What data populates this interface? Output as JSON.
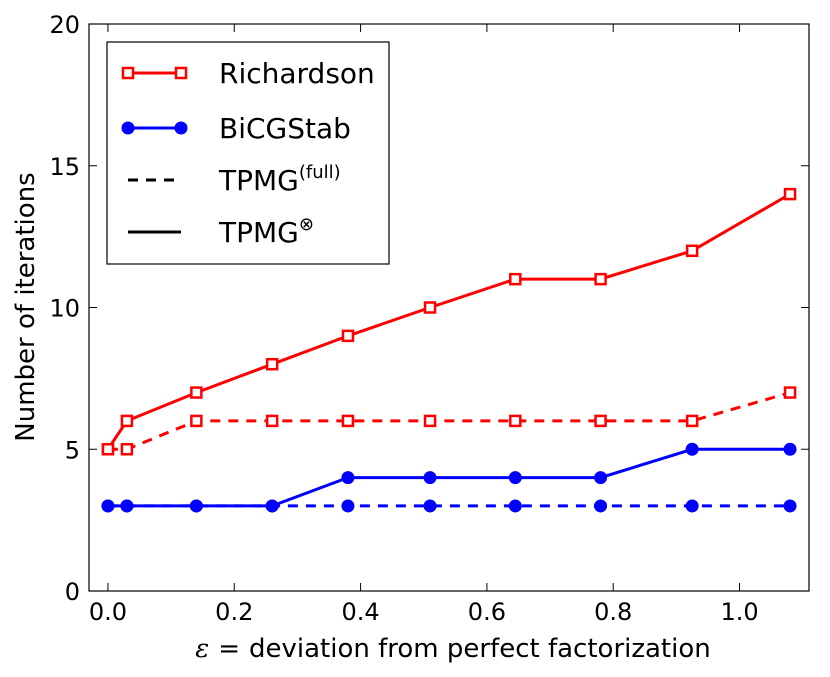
{
  "chart_data": {
    "type": "line",
    "xlabel": "deviation from perfect factorization",
    "xlabel_symbol": "ε",
    "xlabel_eq": "=",
    "ylabel": "Number of iterations",
    "xlim": [
      -0.03,
      1.11
    ],
    "ylim": [
      0,
      20
    ],
    "xticks": [
      "0.0",
      "0.2",
      "0.4",
      "0.6",
      "0.8",
      "1.0"
    ],
    "yticks": [
      "0",
      "5",
      "10",
      "15",
      "20"
    ],
    "grid": false,
    "legend_position": "top-left",
    "x": [
      0.0,
      0.03,
      0.14,
      0.26,
      0.38,
      0.51,
      0.645,
      0.78,
      0.925,
      1.08
    ],
    "series": [
      {
        "name": "Richardson",
        "solver": "Richardson",
        "preconditioner": "TPMG⊗",
        "color": "#ff0000",
        "marker": "open-square",
        "linestyle": "solid",
        "values": [
          5,
          6,
          7,
          8,
          9,
          10,
          11,
          11,
          12,
          14
        ]
      },
      {
        "name": "Richardson",
        "solver": "Richardson",
        "preconditioner": "TPMG(full)",
        "color": "#ff0000",
        "marker": "open-square",
        "linestyle": "dashed",
        "values": [
          5,
          5,
          6,
          6,
          6,
          6,
          6,
          6,
          6,
          7
        ]
      },
      {
        "name": "BiCGStab",
        "solver": "BiCGStab",
        "preconditioner": "TPMG⊗",
        "color": "#0000ff",
        "marker": "filled-circle",
        "linestyle": "solid",
        "values": [
          3,
          3,
          3,
          3,
          4,
          4,
          4,
          4,
          5,
          5
        ]
      },
      {
        "name": "BiCGStab",
        "solver": "BiCGStab",
        "preconditioner": "TPMG(full)",
        "color": "#0000ff",
        "marker": "filled-circle",
        "linestyle": "dashed",
        "values": [
          3,
          3,
          3,
          3,
          3,
          3,
          3,
          3,
          3,
          3
        ]
      }
    ],
    "legend": [
      {
        "label": "Richardson",
        "sup": "",
        "color": "#ff0000",
        "marker": "open-square",
        "linestyle": "solid"
      },
      {
        "label": "BiCGStab",
        "sup": "",
        "color": "#0000ff",
        "marker": "filled-circle",
        "linestyle": "solid"
      },
      {
        "label": "TPMG",
        "sup": "(full)",
        "color": "#000000",
        "marker": "none",
        "linestyle": "dashed"
      },
      {
        "label": "TPMG",
        "sup": "⊗",
        "color": "#000000",
        "marker": "none",
        "linestyle": "solid"
      }
    ]
  }
}
